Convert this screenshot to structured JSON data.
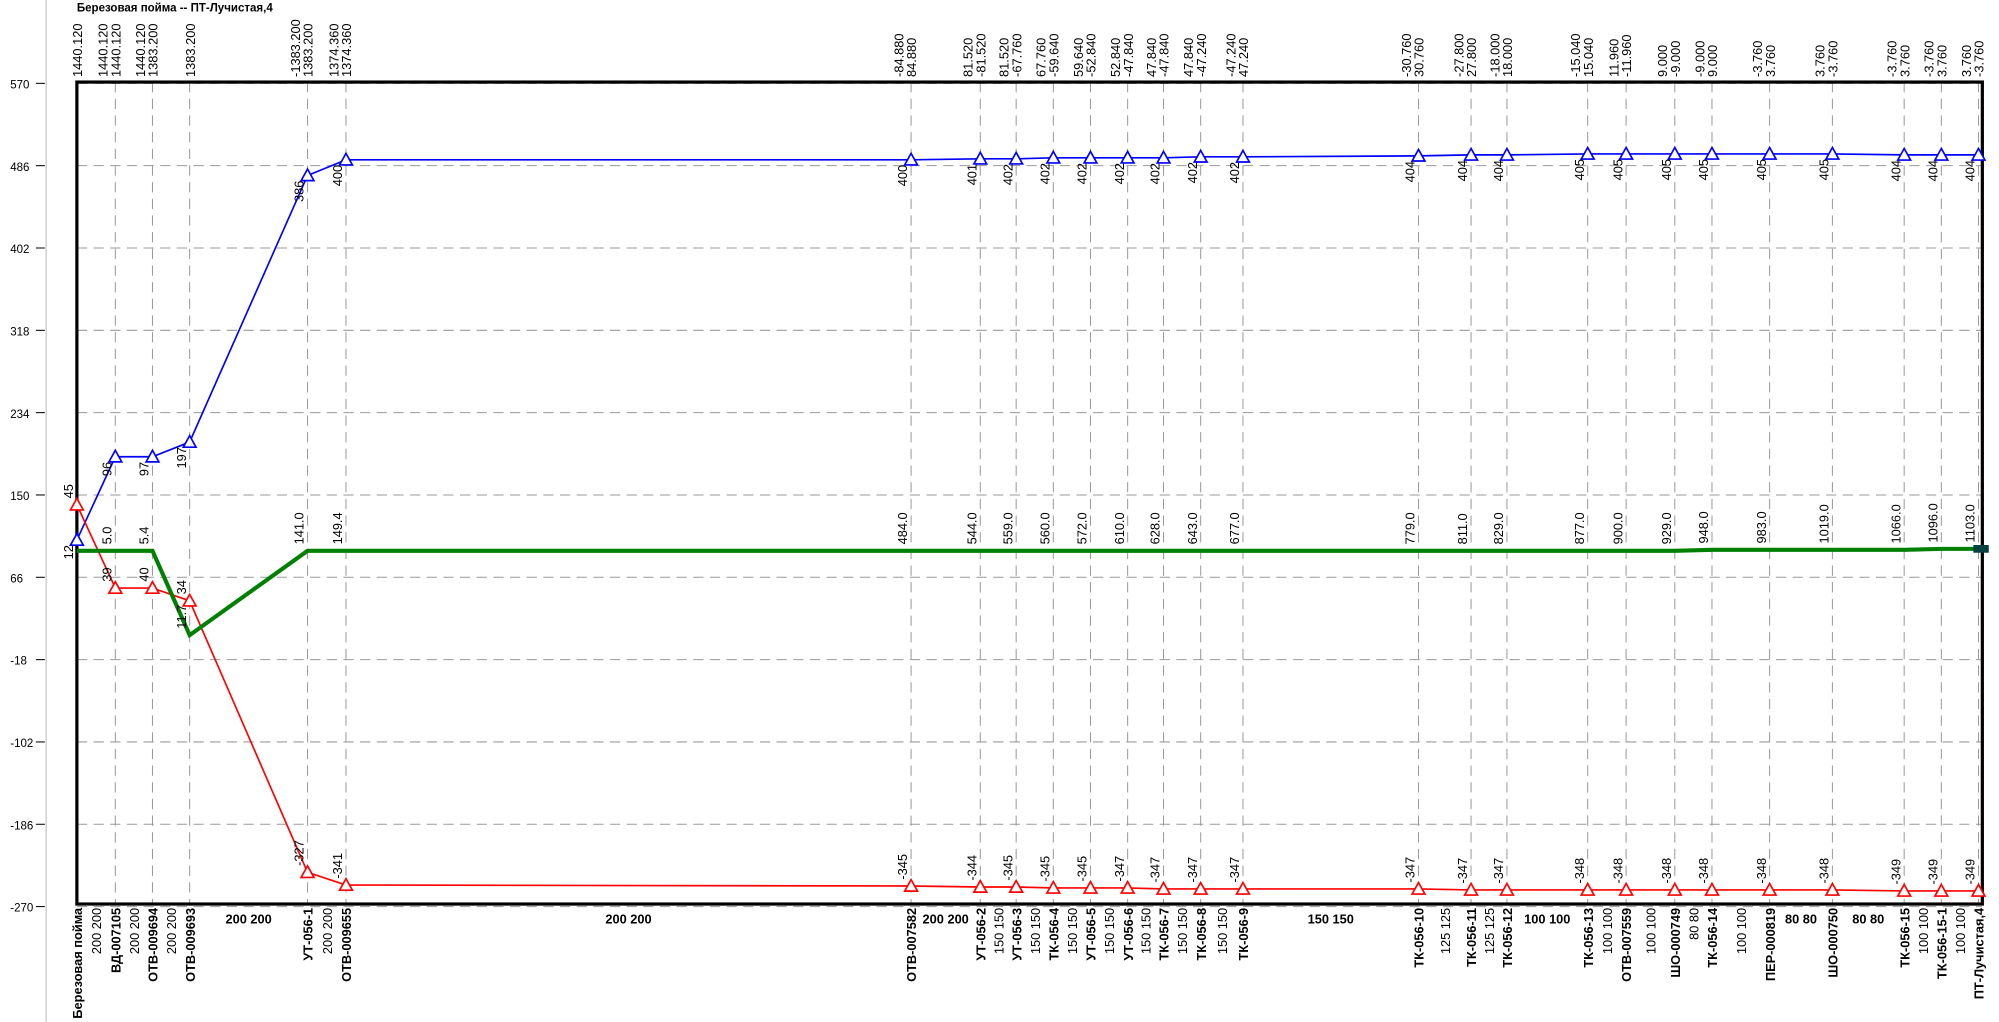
{
  "chart_data": {
    "type": "line",
    "title": "Березовая пойма -- ПТ-Лучистая,4",
    "ylim": [
      -270,
      570
    ],
    "yticks": [
      570,
      486,
      402,
      318,
      234,
      150,
      66,
      -18,
      -102,
      -186,
      -270
    ],
    "grid": true,
    "categories": [
      "Березовая пойма",
      "ВД-007105",
      "ОТВ-009694",
      "ОТВ-009693",
      "УТ-056-1",
      "ОТВ-009655",
      "ОТВ-007582",
      "УТ-056-2",
      "УТ-056-3",
      "ТК-056-4",
      "УТ-056-5",
      "УТ-056-6",
      "ТК-056-7",
      "ТК-056-8",
      "ТК-056-9",
      "ТК-056-10",
      "ТК-056-11",
      "ТК-056-12",
      "ТК-056-13",
      "ОТВ-007559",
      "ШО-000749",
      "ТК-056-14",
      "ПЕР-000819",
      "ШО-000750",
      "ТК-056-15",
      "ТК-056-15-1",
      "ПТ-Лучистая,4"
    ],
    "flow_labels": [
      [
        "1440.120"
      ],
      [
        "1440.120",
        "1440.120"
      ],
      [
        "1440.120",
        "1383.200"
      ],
      [
        "1383.200"
      ],
      [
        "-1383.200",
        "1383.200"
      ],
      [
        "1374.360",
        "1374.360"
      ],
      [
        "-84.880",
        "84.880"
      ],
      [
        "81.520",
        "-81.520"
      ],
      [
        "81.520",
        "-67.760"
      ],
      [
        "67.760",
        "-59.640"
      ],
      [
        "59.640",
        "-52.840"
      ],
      [
        "52.840",
        "-47.840"
      ],
      [
        "47.840",
        "-47.840"
      ],
      [
        "47.840",
        "-47.240"
      ],
      [
        "-47.240",
        "47.240"
      ],
      [
        "-30.760",
        "30.760"
      ],
      [
        "-27.800",
        "27.800"
      ],
      [
        "-18.000",
        "18.000"
      ],
      [
        "-15.040",
        "15.040"
      ],
      [
        "11.960",
        "-11.960"
      ],
      [
        "9.000",
        "-9.000"
      ],
      [
        "-9.000",
        "9.000"
      ],
      [
        "-3.760",
        "3.760"
      ],
      [
        "3.760",
        "-3.760"
      ],
      [
        "-3.760",
        "3.760"
      ],
      [
        "-3.760",
        "3.760"
      ],
      [
        "3.760",
        "-3.760"
      ]
    ],
    "diameter_labels": [
      "200 200",
      "200 200",
      "200 200",
      "200 200",
      "200 200",
      "200 200",
      "200 200",
      "150 150",
      "150 150",
      "150 150",
      "150 150",
      "150 150",
      "150 150",
      "150 150",
      "150 150",
      "125 125",
      "125 125",
      "100 100",
      "100 100",
      "100 100",
      "80 80",
      "100 100",
      "80 80",
      "80 80",
      "100 100",
      "100 100"
    ],
    "series": [
      {
        "color": "#0000ff",
        "marker": "triangle",
        "values": [
          104,
          189,
          189,
          204,
          476,
          492,
          492,
          493,
          493,
          494,
          494,
          494,
          494,
          495,
          495,
          496,
          497,
          497,
          498,
          498,
          498,
          498,
          498,
          498,
          497,
          497,
          497
        ],
        "labels": [
          "12",
          "96",
          "97",
          "197",
          "386",
          "400",
          "400",
          "401",
          "402",
          "402",
          "402",
          "402",
          "402",
          "402",
          "402",
          "404",
          "404",
          "404",
          "405",
          "405",
          "405",
          "405",
          "405",
          "405",
          "404",
          "404",
          "404"
        ]
      },
      {
        "color": "#ff0000",
        "marker": "triangle",
        "values": [
          140,
          55,
          55,
          42,
          -235,
          -248,
          -249,
          -250,
          -250,
          -251,
          -251,
          -251,
          -252,
          -252,
          -252,
          -252,
          -253,
          -253,
          -253,
          -253,
          -253,
          -253,
          -253,
          -253,
          -254,
          -254,
          -254
        ],
        "labels": [
          "45",
          "39",
          "40",
          "34",
          "-327",
          "-341",
          "-345",
          "-344",
          "-345",
          "-345",
          "-345",
          "-347",
          "-347",
          "-347",
          "-347",
          "-347",
          "-347",
          "-347",
          "-348",
          "-348",
          "-348",
          "-348",
          "-348",
          "-348",
          "-349",
          "-349",
          "-349"
        ]
      },
      {
        "color": "#008000",
        "marker": "none",
        "values": [
          93,
          93,
          93,
          7,
          93,
          93,
          93,
          93,
          93,
          93,
          93,
          93,
          93,
          93,
          93,
          93,
          93,
          93,
          93,
          93,
          93,
          94,
          94,
          94,
          94,
          95,
          95
        ],
        "labels": [
          null,
          "5.0",
          "5.4",
          "11.7",
          "141.0",
          "149.4",
          "484.0",
          "544.0",
          "559.0",
          "560.0",
          "572.0",
          "610.0",
          "628.0",
          "643.0",
          "677.0",
          "779.0",
          "811.0",
          "829.0",
          "877.0",
          "900.0",
          "929.0",
          "948.0",
          "983.0",
          "1019.0",
          "1066.0",
          "1096.0",
          "1103.0"
        ]
      }
    ]
  }
}
